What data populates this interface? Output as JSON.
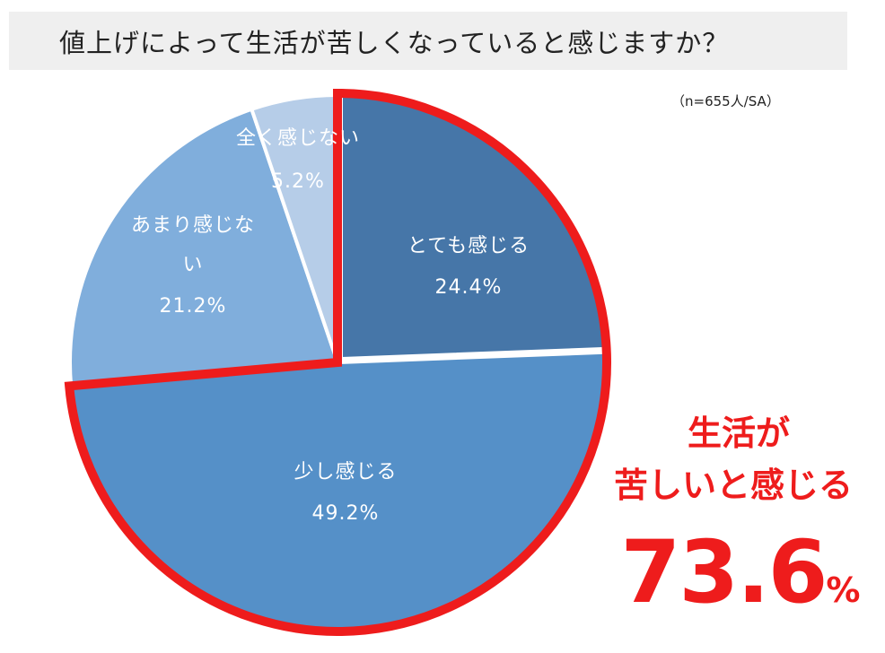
{
  "header": {
    "title": "値上げによって生活が苦しくなっていると感じますか？",
    "note": "（n=655人/SA）"
  },
  "callout": {
    "line1": "生活が",
    "line2": "苦しいと感じる",
    "value": "73.6",
    "unit": "%"
  },
  "colors": {
    "highlight": "#ee1c1c",
    "title_bg": "#efefef"
  },
  "chart_data": {
    "type": "pie",
    "title": "値上げによって生活が苦しくなっていると感じますか？",
    "start": "12 o'clock, clockwise",
    "slices": [
      {
        "label_lines": [
          "とても感じる"
        ],
        "value": 24.4,
        "value_label": "24.4%",
        "color": "#4676a8"
      },
      {
        "label_lines": [
          "少し感じる"
        ],
        "value": 49.2,
        "value_label": "49.2%",
        "color": "#5590c8"
      },
      {
        "label_lines": [
          "あまり感じな",
          "い"
        ],
        "value": 21.2,
        "value_label": "21.2%",
        "color": "#80aedc"
      },
      {
        "label_lines": [
          "全く感じない"
        ],
        "value": 5.2,
        "value_label": "5.2%",
        "color": "#b6cde8"
      }
    ],
    "highlighted_slices": [
      "とても感じる",
      "少し感じる"
    ],
    "highlight_total": "73.6%"
  }
}
